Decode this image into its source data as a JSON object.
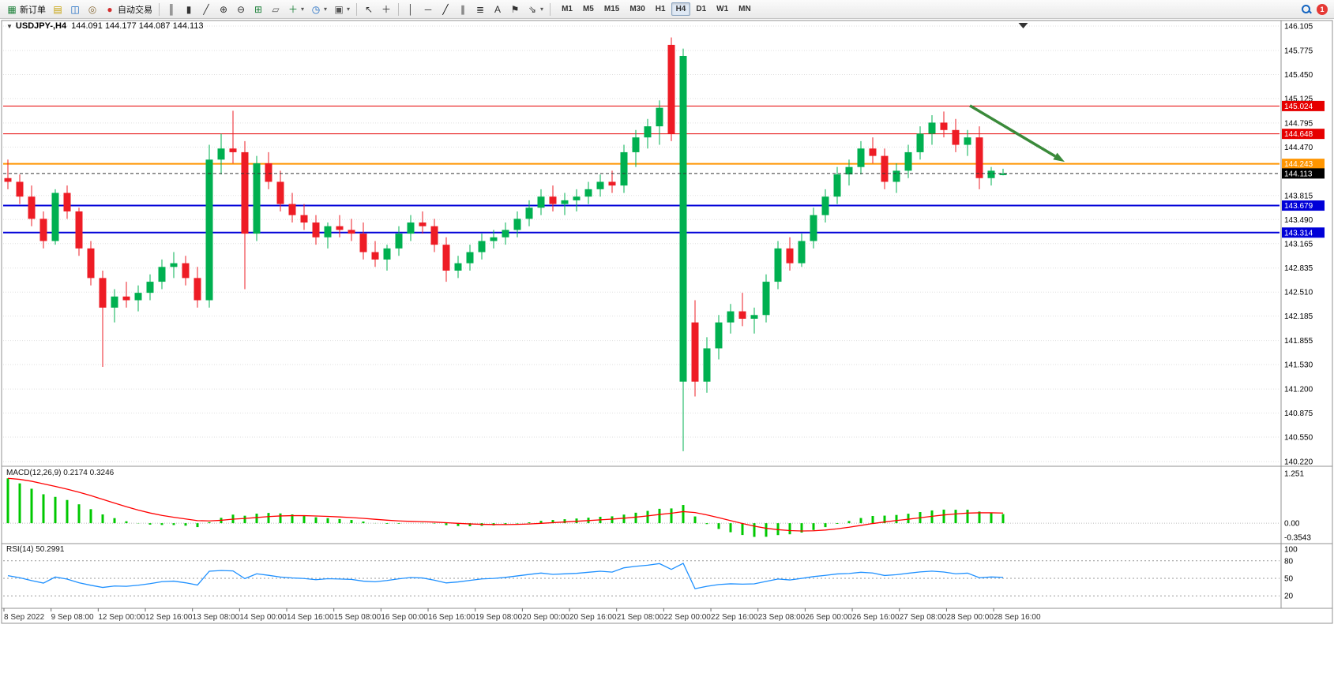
{
  "toolbar": {
    "groups": [
      {
        "items": [
          {
            "name": "new-order",
            "glyph": "▦",
            "color": "#1a7f37",
            "label": "新订单"
          },
          {
            "name": "chart-profiles",
            "glyph": "▤",
            "color": "#c59f00"
          },
          {
            "name": "market-watch",
            "glyph": "◫",
            "color": "#1565c0"
          },
          {
            "name": "signals",
            "glyph": "◎",
            "color": "#8a6d3b"
          },
          {
            "name": "auto-trading",
            "glyph": "●",
            "color": "#d32f2f",
            "label": "自动交易"
          }
        ]
      },
      {
        "items": [
          {
            "name": "bar-chart-mode",
            "glyph": "║",
            "color": "#333333"
          },
          {
            "name": "candlestick-mode",
            "glyph": "▮",
            "color": "#333333"
          },
          {
            "name": "line-chart-mode",
            "glyph": "╱",
            "color": "#333333"
          },
          {
            "name": "zoom-in",
            "glyph": "⊕",
            "color": "#333333"
          },
          {
            "name": "zoom-out",
            "glyph": "⊖",
            "color": "#333333"
          },
          {
            "name": "tile-windows",
            "glyph": "⊞",
            "color": "#1a7f37"
          },
          {
            "name": "arrange-windows",
            "glyph": "▱",
            "color": "#555555"
          },
          {
            "name": "indicators",
            "glyph": "＋",
            "color": "#1a7f37",
            "dropdown": true
          },
          {
            "name": "periods",
            "glyph": "◷",
            "color": "#1565c0",
            "dropdown": true
          },
          {
            "name": "templates",
            "glyph": "▣",
            "color": "#555555",
            "dropdown": true
          }
        ]
      },
      {
        "items": [
          {
            "name": "cursor",
            "glyph": "↖",
            "color": "#333333"
          },
          {
            "name": "crosshair",
            "glyph": "＋",
            "color": "#333333"
          }
        ]
      },
      {
        "items": [
          {
            "name": "vertical-line-tool",
            "glyph": "│",
            "color": "#333333"
          },
          {
            "name": "horizontal-line-tool",
            "glyph": "─",
            "color": "#333333"
          },
          {
            "name": "trendline-tool",
            "glyph": "╱",
            "color": "#111111"
          },
          {
            "name": "channel-tool",
            "glyph": "∥",
            "color": "#333333"
          },
          {
            "name": "fibonacci-tool",
            "glyph": "≣",
            "color": "#333333"
          },
          {
            "name": "text-tool",
            "glyph": "A",
            "color": "#333333"
          },
          {
            "name": "label-tool",
            "glyph": "⚑",
            "color": "#333333"
          },
          {
            "name": "shapes-tool",
            "glyph": "⇘",
            "color": "#333333",
            "dropdown": true
          }
        ]
      }
    ],
    "timeframes": [
      "M1",
      "M5",
      "M15",
      "M30",
      "H1",
      "H4",
      "D1",
      "W1",
      "MN"
    ],
    "active_timeframe": "H4",
    "right": {
      "badge": "1"
    }
  },
  "chart": {
    "symbol_period": "USDJPY-,H4",
    "ohlc": "144.091 144.177 144.087 144.113",
    "collapse_glyph": "▼"
  },
  "macd": {
    "title": "MACD(12,26,9)",
    "values": "0.2174 0.3246"
  },
  "rsi": {
    "title": "RSI(14)",
    "value": "50.2991"
  },
  "colors": {
    "candle_up": "#00B050",
    "candle_down": "#EE1C25",
    "macd_hist": "#00C800",
    "macd_signal": "#FF0000",
    "rsi_line": "#1E90FF",
    "grid": "#DFDFDF",
    "bid_line": "#333333",
    "arrow": "#3A8A3A",
    "frame": "#909090",
    "axis_text": "#000000",
    "time_text": "#333333"
  },
  "price_axis": {
    "labels": [
      "146.105",
      "145.775",
      "145.450",
      "145.125",
      "144.795",
      "144.470",
      "143.815",
      "143.490",
      "143.165",
      "142.835",
      "142.510",
      "142.185",
      "141.855",
      "141.530",
      "141.200",
      "140.875",
      "140.550",
      "140.220"
    ]
  },
  "time_axis": {
    "labels": [
      "8 Sep 2022",
      "9 Sep 08:00",
      "12 Sep 00:00",
      "12 Sep 16:00",
      "13 Sep 08:00",
      "14 Sep 00:00",
      "14 Sep 16:00",
      "15 Sep 08:00",
      "16 Sep 00:00",
      "16 Sep 16:00",
      "19 Sep 08:00",
      "20 Sep 00:00",
      "20 Sep 16:00",
      "21 Sep 08:00",
      "22 Sep 00:00",
      "22 Sep 16:00",
      "23 Sep 08:00",
      "26 Sep 00:00",
      "26 Sep 16:00",
      "27 Sep 08:00",
      "28 Sep 00:00",
      "28 Sep 16:00"
    ]
  },
  "levels": [
    {
      "price": 145.024,
      "label": "145.024",
      "color": "#E60000",
      "width": 1,
      "style": "solid"
    },
    {
      "price": 144.648,
      "label": "144.648",
      "color": "#E60000",
      "width": 1,
      "style": "solid"
    },
    {
      "price": 144.243,
      "label": "144.243",
      "color": "#FF9500",
      "width": 2,
      "style": "solid"
    },
    {
      "price": 143.679,
      "label": "143.679",
      "color": "#0000D8",
      "width": 2,
      "style": "solid"
    },
    {
      "price": 143.314,
      "label": "143.314",
      "color": "#0000D8",
      "width": 2,
      "style": "solid"
    }
  ],
  "bid": {
    "price": 144.113,
    "label": "144.113",
    "badge_color": "#000000"
  },
  "annotation": {
    "arrow": {
      "from_bar": 81.2,
      "from_price": 145.03,
      "to_bar": 89.2,
      "to_price": 144.27
    },
    "shift_triangle_bar": 85.7
  },
  "chart_data": {
    "type": "candlestick",
    "symbol": "USDJPY-",
    "timeframe": "H4",
    "title": "USDJPY-,H4",
    "ohlc_current": {
      "open": 144.091,
      "high": 144.177,
      "low": 144.087,
      "close": 144.113
    },
    "y_axis": {
      "min": 140.22,
      "max": 146.105
    },
    "candles": [
      [
        144.05,
        144.3,
        143.9,
        144.0
      ],
      [
        144.0,
        144.1,
        143.7,
        143.8
      ],
      [
        143.8,
        143.95,
        143.4,
        143.5
      ],
      [
        143.5,
        143.6,
        143.1,
        143.2
      ],
      [
        143.2,
        143.9,
        143.15,
        143.85
      ],
      [
        143.85,
        143.95,
        143.5,
        143.6
      ],
      [
        143.6,
        143.65,
        143.0,
        143.1
      ],
      [
        143.1,
        143.2,
        142.6,
        142.7
      ],
      [
        142.7,
        142.8,
        141.5,
        142.3
      ],
      [
        142.3,
        142.55,
        142.1,
        142.45
      ],
      [
        142.45,
        142.65,
        142.3,
        142.4
      ],
      [
        142.4,
        142.6,
        142.25,
        142.5
      ],
      [
        142.5,
        142.75,
        142.4,
        142.65
      ],
      [
        142.65,
        142.95,
        142.55,
        142.85
      ],
      [
        142.85,
        143.05,
        142.7,
        142.9
      ],
      [
        142.9,
        143.0,
        142.6,
        142.7
      ],
      [
        142.7,
        142.85,
        142.3,
        142.4
      ],
      [
        142.4,
        144.5,
        142.3,
        144.3
      ],
      [
        144.3,
        144.65,
        144.1,
        144.45
      ],
      [
        144.45,
        144.96,
        144.25,
        144.4
      ],
      [
        144.4,
        144.55,
        142.55,
        143.3
      ],
      [
        143.3,
        144.35,
        143.2,
        144.25
      ],
      [
        144.25,
        144.4,
        143.9,
        144.0
      ],
      [
        144.0,
        144.15,
        143.6,
        143.7
      ],
      [
        143.7,
        143.85,
        143.45,
        143.55
      ],
      [
        143.55,
        143.7,
        143.35,
        143.45
      ],
      [
        143.45,
        143.55,
        143.15,
        143.25
      ],
      [
        143.25,
        143.45,
        143.1,
        143.4
      ],
      [
        143.4,
        143.55,
        143.25,
        143.35
      ],
      [
        143.35,
        143.5,
        143.2,
        143.3
      ],
      [
        143.3,
        143.45,
        142.95,
        143.05
      ],
      [
        143.05,
        143.2,
        142.85,
        142.95
      ],
      [
        142.95,
        143.15,
        142.8,
        143.1
      ],
      [
        143.1,
        143.4,
        143.0,
        143.3
      ],
      [
        143.3,
        143.55,
        143.2,
        143.45
      ],
      [
        143.45,
        143.6,
        143.3,
        143.4
      ],
      [
        143.4,
        143.5,
        143.05,
        143.15
      ],
      [
        143.15,
        143.25,
        142.65,
        142.8
      ],
      [
        142.8,
        143.0,
        142.7,
        142.9
      ],
      [
        142.9,
        143.15,
        142.8,
        143.05
      ],
      [
        143.05,
        143.3,
        142.95,
        143.2
      ],
      [
        143.2,
        143.35,
        143.1,
        143.25
      ],
      [
        143.25,
        143.45,
        143.15,
        143.35
      ],
      [
        143.35,
        143.6,
        143.25,
        143.5
      ],
      [
        143.5,
        143.75,
        143.4,
        143.65
      ],
      [
        143.65,
        143.9,
        143.55,
        143.8
      ],
      [
        143.8,
        143.95,
        143.6,
        143.7
      ],
      [
        143.7,
        143.85,
        143.55,
        143.75
      ],
      [
        143.75,
        143.9,
        143.6,
        143.8
      ],
      [
        143.8,
        144.0,
        143.7,
        143.9
      ],
      [
        143.9,
        144.1,
        143.8,
        144.0
      ],
      [
        144.0,
        144.15,
        143.85,
        143.95
      ],
      [
        143.95,
        144.5,
        143.85,
        144.4
      ],
      [
        144.4,
        144.7,
        144.2,
        144.6
      ],
      [
        144.6,
        144.85,
        144.45,
        144.75
      ],
      [
        144.75,
        145.1,
        144.5,
        145.0
      ],
      [
        145.85,
        145.95,
        144.55,
        144.65
      ],
      [
        141.3,
        145.8,
        140.36,
        145.7
      ],
      [
        142.1,
        142.4,
        141.1,
        141.3
      ],
      [
        141.3,
        141.9,
        141.15,
        141.75
      ],
      [
        141.75,
        142.2,
        141.6,
        142.1
      ],
      [
        142.1,
        142.35,
        141.95,
        142.25
      ],
      [
        142.25,
        142.5,
        142.05,
        142.15
      ],
      [
        142.15,
        142.3,
        141.95,
        142.2
      ],
      [
        142.2,
        142.75,
        142.1,
        142.65
      ],
      [
        142.65,
        143.2,
        142.55,
        143.1
      ],
      [
        143.1,
        143.25,
        142.8,
        142.9
      ],
      [
        142.9,
        143.3,
        142.85,
        143.2
      ],
      [
        143.2,
        143.65,
        143.1,
        143.55
      ],
      [
        143.55,
        143.9,
        143.45,
        143.8
      ],
      [
        143.8,
        144.2,
        143.7,
        144.1
      ],
      [
        144.1,
        144.3,
        143.95,
        144.2
      ],
      [
        144.2,
        144.55,
        144.1,
        144.45
      ],
      [
        144.45,
        144.6,
        144.25,
        144.35
      ],
      [
        144.35,
        144.45,
        143.9,
        144.0
      ],
      [
        144.0,
        144.25,
        143.85,
        144.15
      ],
      [
        144.15,
        144.5,
        144.05,
        144.4
      ],
      [
        144.4,
        144.75,
        144.3,
        144.65
      ],
      [
        144.65,
        144.9,
        144.5,
        144.8
      ],
      [
        144.8,
        144.95,
        144.6,
        144.7
      ],
      [
        144.7,
        144.85,
        144.4,
        144.5
      ],
      [
        144.5,
        144.7,
        144.35,
        144.6
      ],
      [
        144.6,
        144.75,
        143.9,
        144.05
      ],
      [
        144.05,
        144.2,
        143.95,
        144.15
      ],
      [
        144.091,
        144.177,
        144.087,
        144.113
      ]
    ],
    "indicators": [
      {
        "name": "MACD",
        "params": "12,26,9",
        "current_values": [
          0.2174,
          0.3246
        ],
        "scale": {
          "max": 1.251,
          "min": -0.3543
        },
        "axis_labels": [
          "1.251",
          "0.00",
          "-0.3543"
        ]
      },
      {
        "name": "RSI",
        "params": "14",
        "current_value": 50.2991,
        "levels": [
          80,
          50,
          20
        ],
        "axis_labels": [
          "100",
          "80",
          "50",
          "20"
        ]
      }
    ]
  }
}
